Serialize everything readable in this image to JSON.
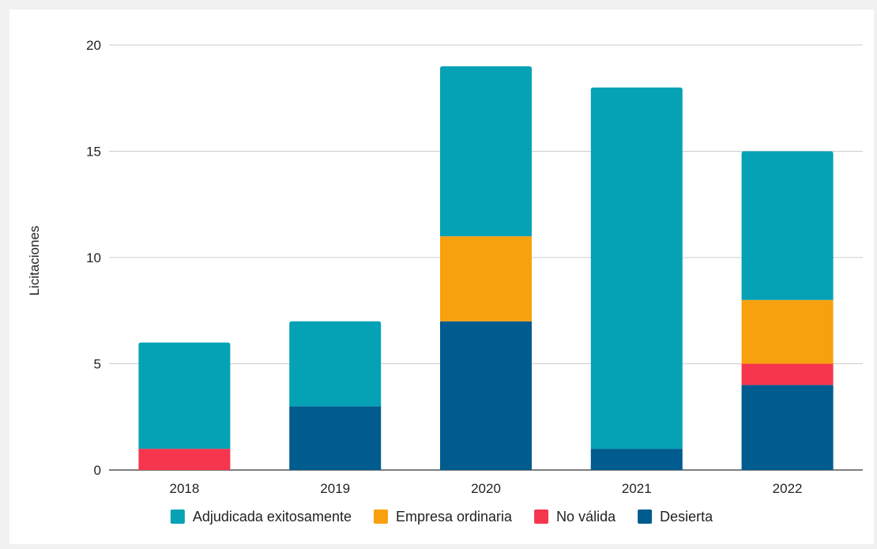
{
  "chart_data": {
    "type": "bar",
    "stacked": true,
    "title": "",
    "xlabel": "",
    "ylabel": "Licitaciones",
    "ylim": [
      0,
      20
    ],
    "yticks": [
      0,
      5,
      10,
      15,
      20
    ],
    "grid": true,
    "legend_position": "bottom",
    "categories": [
      "2018",
      "2019",
      "2020",
      "2021",
      "2022"
    ],
    "series": [
      {
        "name": "Desierta",
        "color": "#005b8e",
        "values": [
          0,
          3,
          7,
          1,
          4
        ]
      },
      {
        "name": "No válida",
        "color": "#f6354f",
        "values": [
          1,
          0,
          0,
          0,
          1
        ]
      },
      {
        "name": "Empresa ordinaria",
        "color": "#f8a10e",
        "values": [
          0,
          0,
          4,
          0,
          3
        ]
      },
      {
        "name": "Adjudicada exitosamente",
        "color": "#05a2b6",
        "values": [
          5,
          4,
          8,
          17,
          7
        ]
      }
    ],
    "legend_order": [
      "Adjudicada exitosamente",
      "Empresa ordinaria",
      "No válida",
      "Desierta"
    ]
  }
}
